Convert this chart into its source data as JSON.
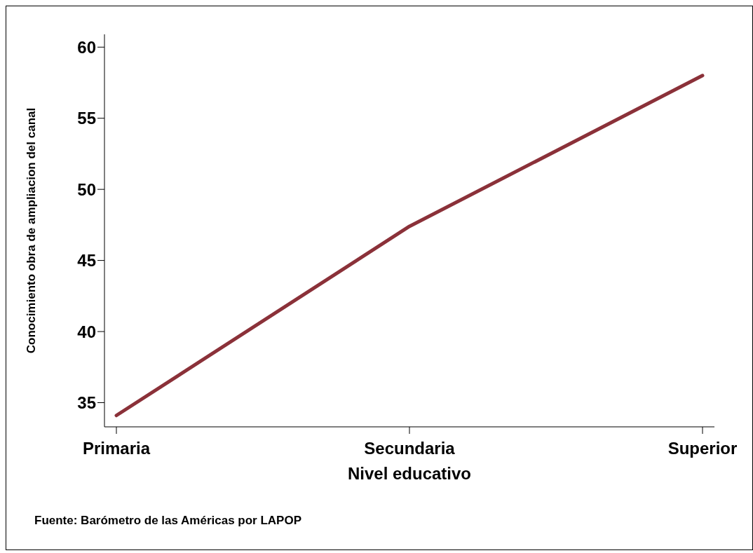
{
  "chart_data": {
    "type": "line",
    "xlabel": "Nivel educativo",
    "ylabel": "Conocimiento obra de ampliacion del canal",
    "categories": [
      "Primaria",
      "Secundaria",
      "Superior"
    ],
    "series": [
      {
        "color": "#8b3139",
        "values": [
          34.1,
          47.4,
          58.0
        ]
      }
    ],
    "ylim": [
      33.3,
      60.9
    ],
    "yticks": [
      35,
      40,
      45,
      50,
      55,
      60
    ],
    "grid": false,
    "legend": false,
    "marker": "none",
    "line_style": "solid",
    "annotations": [
      "Fuente: Barómetro de las Américas por LAPOP"
    ]
  }
}
